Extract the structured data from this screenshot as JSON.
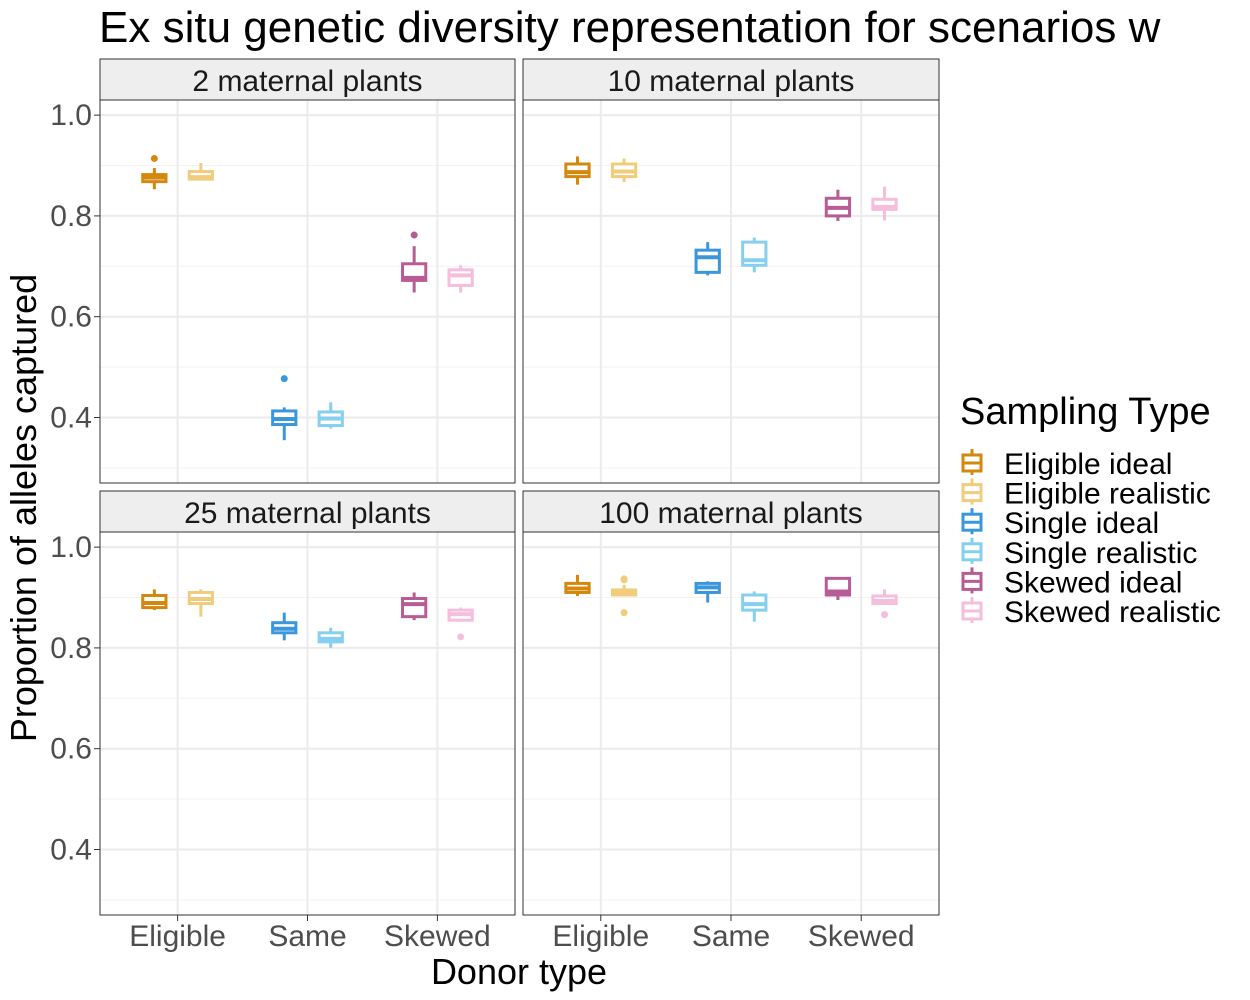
{
  "chart_data": {
    "type": "boxplot",
    "title": "Ex situ genetic diversity representation for scenarios w",
    "xlabel": "Donor type",
    "ylabel": "Proportion of alleles captured",
    "ylim": [
      0.27,
      1.03
    ],
    "y_ticks": [
      0.4,
      0.6,
      0.8,
      1.0
    ],
    "y_tick_labels": [
      "0.4",
      "0.6",
      "0.8",
      "1.0"
    ],
    "grid": true,
    "facet_layout": "2x2",
    "categories": [
      "Eligible",
      "Same",
      "Skewed"
    ],
    "legend": {
      "title": "Sampling Type",
      "position": "right",
      "items": [
        {
          "label": "Eligible ideal",
          "color": "#D4880D"
        },
        {
          "label": "Eligible realistic",
          "color": "#F2CC7D"
        },
        {
          "label": "Single ideal",
          "color": "#3A97DC"
        },
        {
          "label": "Single realistic",
          "color": "#86CFF0"
        },
        {
          "label": "Skewed ideal",
          "color": "#B85C95"
        },
        {
          "label": "Skewed realistic",
          "color": "#F6BEDD"
        }
      ]
    },
    "panels": [
      {
        "label": "2 maternal plants",
        "boxes": [
          {
            "category": "Eligible",
            "series": 0,
            "min": 0.853,
            "q1": 0.868,
            "median": 0.876,
            "q3": 0.882,
            "max": 0.895,
            "outliers": [
              0.914
            ]
          },
          {
            "category": "Eligible",
            "series": 1,
            "min": 0.87,
            "q1": 0.873,
            "median": 0.877,
            "q3": 0.888,
            "max": 0.905,
            "outliers": []
          },
          {
            "category": "Same",
            "series": 0,
            "min": 0.355,
            "q1": 0.386,
            "median": 0.397,
            "q3": 0.413,
            "max": 0.42,
            "outliers": [
              0.477
            ]
          },
          {
            "category": "Same",
            "series": 1,
            "min": 0.378,
            "q1": 0.384,
            "median": 0.398,
            "q3": 0.411,
            "max": 0.43,
            "outliers": []
          },
          {
            "category": "Skewed",
            "series": 0,
            "min": 0.648,
            "q1": 0.672,
            "median": 0.677,
            "q3": 0.705,
            "max": 0.74,
            "outliers": [
              0.762
            ]
          },
          {
            "category": "Skewed",
            "series": 1,
            "min": 0.648,
            "q1": 0.662,
            "median": 0.682,
            "q3": 0.693,
            "max": 0.702,
            "outliers": []
          }
        ]
      },
      {
        "label": "10 maternal plants",
        "boxes": [
          {
            "category": "Eligible",
            "series": 0,
            "min": 0.862,
            "q1": 0.878,
            "median": 0.887,
            "q3": 0.903,
            "max": 0.918,
            "outliers": []
          },
          {
            "category": "Eligible",
            "series": 1,
            "min": 0.867,
            "q1": 0.878,
            "median": 0.888,
            "q3": 0.903,
            "max": 0.914,
            "outliers": []
          },
          {
            "category": "Same",
            "series": 0,
            "min": 0.682,
            "q1": 0.688,
            "median": 0.718,
            "q3": 0.732,
            "max": 0.748,
            "outliers": []
          },
          {
            "category": "Same",
            "series": 1,
            "min": 0.688,
            "q1": 0.702,
            "median": 0.712,
            "q3": 0.748,
            "max": 0.757,
            "outliers": []
          },
          {
            "category": "Skewed",
            "series": 0,
            "min": 0.79,
            "q1": 0.8,
            "median": 0.816,
            "q3": 0.835,
            "max": 0.852,
            "outliers": []
          },
          {
            "category": "Skewed",
            "series": 1,
            "min": 0.791,
            "q1": 0.813,
            "median": 0.818,
            "q3": 0.833,
            "max": 0.858,
            "outliers": []
          }
        ]
      },
      {
        "label": "25 maternal plants",
        "boxes": [
          {
            "category": "Eligible",
            "series": 0,
            "min": 0.875,
            "q1": 0.88,
            "median": 0.889,
            "q3": 0.904,
            "max": 0.916,
            "outliers": []
          },
          {
            "category": "Eligible",
            "series": 1,
            "min": 0.862,
            "q1": 0.888,
            "median": 0.897,
            "q3": 0.91,
            "max": 0.916,
            "outliers": []
          },
          {
            "category": "Same",
            "series": 0,
            "min": 0.815,
            "q1": 0.83,
            "median": 0.838,
            "q3": 0.85,
            "max": 0.87,
            "outliers": []
          },
          {
            "category": "Same",
            "series": 1,
            "min": 0.8,
            "q1": 0.812,
            "median": 0.818,
            "q3": 0.83,
            "max": 0.84,
            "outliers": []
          },
          {
            "category": "Skewed",
            "series": 0,
            "min": 0.855,
            "q1": 0.862,
            "median": 0.887,
            "q3": 0.898,
            "max": 0.91,
            "outliers": []
          },
          {
            "category": "Skewed",
            "series": 1,
            "min": 0.852,
            "q1": 0.855,
            "median": 0.867,
            "q3": 0.875,
            "max": 0.88,
            "outliers": [
              0.822
            ]
          }
        ]
      },
      {
        "label": "100 maternal plants",
        "boxes": [
          {
            "category": "Eligible",
            "series": 0,
            "min": 0.903,
            "q1": 0.91,
            "median": 0.918,
            "q3": 0.928,
            "max": 0.945,
            "outliers": []
          },
          {
            "category": "Eligible",
            "series": 1,
            "min": 0.903,
            "q1": 0.905,
            "median": 0.91,
            "q3": 0.915,
            "max": 0.925,
            "outliers": [
              0.87,
              0.935,
              0.937
            ]
          },
          {
            "category": "Same",
            "series": 0,
            "min": 0.89,
            "q1": 0.91,
            "median": 0.92,
            "q3": 0.928,
            "max": 0.932,
            "outliers": []
          },
          {
            "category": "Same",
            "series": 1,
            "min": 0.852,
            "q1": 0.875,
            "median": 0.887,
            "q3": 0.905,
            "max": 0.912,
            "outliers": []
          },
          {
            "category": "Skewed",
            "series": 0,
            "min": 0.895,
            "q1": 0.905,
            "median": 0.912,
            "q3": 0.938,
            "max": 0.94,
            "outliers": []
          },
          {
            "category": "Skewed",
            "series": 1,
            "min": 0.888,
            "q1": 0.888,
            "median": 0.893,
            "q3": 0.903,
            "max": 0.916,
            "outliers": [
              0.866
            ]
          }
        ]
      }
    ]
  }
}
